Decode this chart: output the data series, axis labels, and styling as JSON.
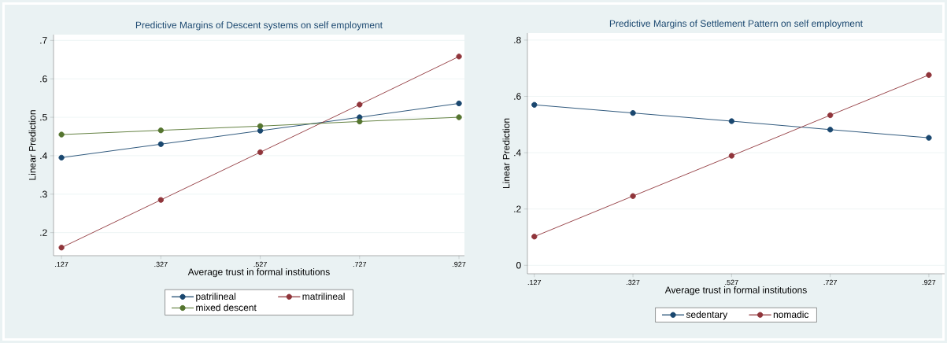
{
  "chart_data": [
    {
      "type": "line",
      "title": "Predictive Margins of Descent systems on self employment",
      "xlabel": "Average trust in formal institutions",
      "ylabel": "Linear Prediction",
      "x": [
        0.127,
        0.327,
        0.527,
        0.727,
        0.927
      ],
      "series": [
        {
          "name": "patrilineal",
          "color": "#1a476f",
          "values": [
            0.395,
            0.43,
            0.465,
            0.5,
            0.536
          ]
        },
        {
          "name": "matrilineal",
          "color": "#90353b",
          "values": [
            0.161,
            0.285,
            0.409,
            0.533,
            0.658
          ]
        },
        {
          "name": "mixed descent",
          "color": "#55752f",
          "values": [
            0.455,
            0.466,
            0.477,
            0.489,
            0.5
          ]
        }
      ],
      "xlim": [
        0.111,
        0.938
      ],
      "ylim": [
        0.14,
        0.715
      ],
      "xticks": [
        {
          "value": 0.127,
          "label": ".127"
        },
        {
          "value": 0.327,
          "label": ".327"
        },
        {
          "value": 0.527,
          "label": ".527"
        },
        {
          "value": 0.727,
          "label": ".727"
        },
        {
          "value": 0.927,
          "label": ".927"
        }
      ],
      "yticks": [
        {
          "value": 0.2,
          "label": ".2"
        },
        {
          "value": 0.3,
          "label": ".3"
        },
        {
          "value": 0.4,
          "label": ".4"
        },
        {
          "value": 0.5,
          "label": ".5"
        },
        {
          "value": 0.6,
          "label": ".6"
        },
        {
          "value": 0.7,
          "label": ".7"
        }
      ],
      "marker": "circle",
      "grid": "y",
      "legend": "bottom"
    },
    {
      "type": "line",
      "title": "Predictive Margins of Settlement Pattern on self employment",
      "xlabel": "Average trust in formal institutions",
      "ylabel": "Linear Prediction",
      "x": [
        0.127,
        0.327,
        0.527,
        0.727,
        0.927
      ],
      "series": [
        {
          "name": "sedentary",
          "color": "#1a476f",
          "values": [
            0.57,
            0.541,
            0.512,
            0.482,
            0.453
          ]
        },
        {
          "name": "nomadic",
          "color": "#90353b",
          "values": [
            0.102,
            0.246,
            0.389,
            0.533,
            0.676
          ]
        }
      ],
      "xlim": [
        0.113,
        0.959
      ],
      "ylim": [
        -0.03,
        0.825
      ],
      "xticks": [
        {
          "value": 0.127,
          "label": ".127"
        },
        {
          "value": 0.327,
          "label": ".327"
        },
        {
          "value": 0.527,
          "label": ".527"
        },
        {
          "value": 0.727,
          "label": ".727"
        },
        {
          "value": 0.927,
          "label": ".927"
        }
      ],
      "yticks": [
        {
          "value": 0,
          "label": "0"
        },
        {
          "value": 0.2,
          "label": ".2"
        },
        {
          "value": 0.4,
          "label": ".4"
        },
        {
          "value": 0.6,
          "label": ".6"
        },
        {
          "value": 0.8,
          "label": ".8"
        }
      ],
      "marker": "circle",
      "grid": "y",
      "legend": "bottom"
    }
  ]
}
